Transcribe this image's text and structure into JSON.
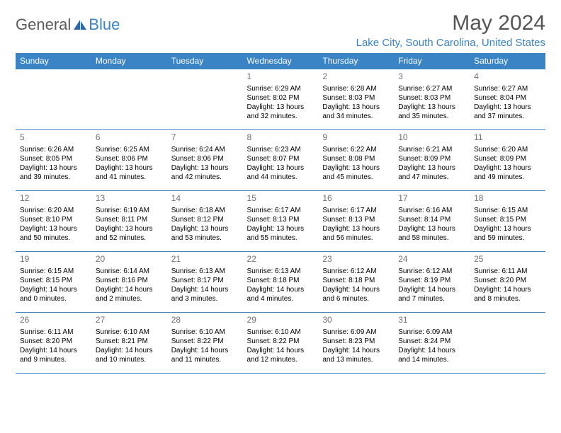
{
  "brand": {
    "part1": "General",
    "part2": "Blue",
    "icon_color": "#2f6aa8"
  },
  "header": {
    "month_title": "May 2024",
    "location": "Lake City, South Carolina, United States"
  },
  "colors": {
    "header_bg": "#3a83c4",
    "header_text": "#ffffff",
    "rule": "#3a83c4",
    "daynum": "#707070",
    "body_text": "#000000",
    "logo_gray": "#5a5a5a",
    "logo_blue": "#3a83c4"
  },
  "day_headers": [
    "Sunday",
    "Monday",
    "Tuesday",
    "Wednesday",
    "Thursday",
    "Friday",
    "Saturday"
  ],
  "weeks": [
    [
      null,
      null,
      null,
      {
        "n": "1",
        "sr": "6:29 AM",
        "ss": "8:02 PM",
        "dl": "13 hours and 32 minutes."
      },
      {
        "n": "2",
        "sr": "6:28 AM",
        "ss": "8:03 PM",
        "dl": "13 hours and 34 minutes."
      },
      {
        "n": "3",
        "sr": "6:27 AM",
        "ss": "8:03 PM",
        "dl": "13 hours and 35 minutes."
      },
      {
        "n": "4",
        "sr": "6:27 AM",
        "ss": "8:04 PM",
        "dl": "13 hours and 37 minutes."
      }
    ],
    [
      {
        "n": "5",
        "sr": "6:26 AM",
        "ss": "8:05 PM",
        "dl": "13 hours and 39 minutes."
      },
      {
        "n": "6",
        "sr": "6:25 AM",
        "ss": "8:06 PM",
        "dl": "13 hours and 41 minutes."
      },
      {
        "n": "7",
        "sr": "6:24 AM",
        "ss": "8:06 PM",
        "dl": "13 hours and 42 minutes."
      },
      {
        "n": "8",
        "sr": "6:23 AM",
        "ss": "8:07 PM",
        "dl": "13 hours and 44 minutes."
      },
      {
        "n": "9",
        "sr": "6:22 AM",
        "ss": "8:08 PM",
        "dl": "13 hours and 45 minutes."
      },
      {
        "n": "10",
        "sr": "6:21 AM",
        "ss": "8:09 PM",
        "dl": "13 hours and 47 minutes."
      },
      {
        "n": "11",
        "sr": "6:20 AM",
        "ss": "8:09 PM",
        "dl": "13 hours and 49 minutes."
      }
    ],
    [
      {
        "n": "12",
        "sr": "6:20 AM",
        "ss": "8:10 PM",
        "dl": "13 hours and 50 minutes."
      },
      {
        "n": "13",
        "sr": "6:19 AM",
        "ss": "8:11 PM",
        "dl": "13 hours and 52 minutes."
      },
      {
        "n": "14",
        "sr": "6:18 AM",
        "ss": "8:12 PM",
        "dl": "13 hours and 53 minutes."
      },
      {
        "n": "15",
        "sr": "6:17 AM",
        "ss": "8:13 PM",
        "dl": "13 hours and 55 minutes."
      },
      {
        "n": "16",
        "sr": "6:17 AM",
        "ss": "8:13 PM",
        "dl": "13 hours and 56 minutes."
      },
      {
        "n": "17",
        "sr": "6:16 AM",
        "ss": "8:14 PM",
        "dl": "13 hours and 58 minutes."
      },
      {
        "n": "18",
        "sr": "6:15 AM",
        "ss": "8:15 PM",
        "dl": "13 hours and 59 minutes."
      }
    ],
    [
      {
        "n": "19",
        "sr": "6:15 AM",
        "ss": "8:15 PM",
        "dl": "14 hours and 0 minutes."
      },
      {
        "n": "20",
        "sr": "6:14 AM",
        "ss": "8:16 PM",
        "dl": "14 hours and 2 minutes."
      },
      {
        "n": "21",
        "sr": "6:13 AM",
        "ss": "8:17 PM",
        "dl": "14 hours and 3 minutes."
      },
      {
        "n": "22",
        "sr": "6:13 AM",
        "ss": "8:18 PM",
        "dl": "14 hours and 4 minutes."
      },
      {
        "n": "23",
        "sr": "6:12 AM",
        "ss": "8:18 PM",
        "dl": "14 hours and 6 minutes."
      },
      {
        "n": "24",
        "sr": "6:12 AM",
        "ss": "8:19 PM",
        "dl": "14 hours and 7 minutes."
      },
      {
        "n": "25",
        "sr": "6:11 AM",
        "ss": "8:20 PM",
        "dl": "14 hours and 8 minutes."
      }
    ],
    [
      {
        "n": "26",
        "sr": "6:11 AM",
        "ss": "8:20 PM",
        "dl": "14 hours and 9 minutes."
      },
      {
        "n": "27",
        "sr": "6:10 AM",
        "ss": "8:21 PM",
        "dl": "14 hours and 10 minutes."
      },
      {
        "n": "28",
        "sr": "6:10 AM",
        "ss": "8:22 PM",
        "dl": "14 hours and 11 minutes."
      },
      {
        "n": "29",
        "sr": "6:10 AM",
        "ss": "8:22 PM",
        "dl": "14 hours and 12 minutes."
      },
      {
        "n": "30",
        "sr": "6:09 AM",
        "ss": "8:23 PM",
        "dl": "14 hours and 13 minutes."
      },
      {
        "n": "31",
        "sr": "6:09 AM",
        "ss": "8:24 PM",
        "dl": "14 hours and 14 minutes."
      },
      null
    ]
  ],
  "labels": {
    "sunrise": "Sunrise:",
    "sunset": "Sunset:",
    "daylight": "Daylight:"
  }
}
